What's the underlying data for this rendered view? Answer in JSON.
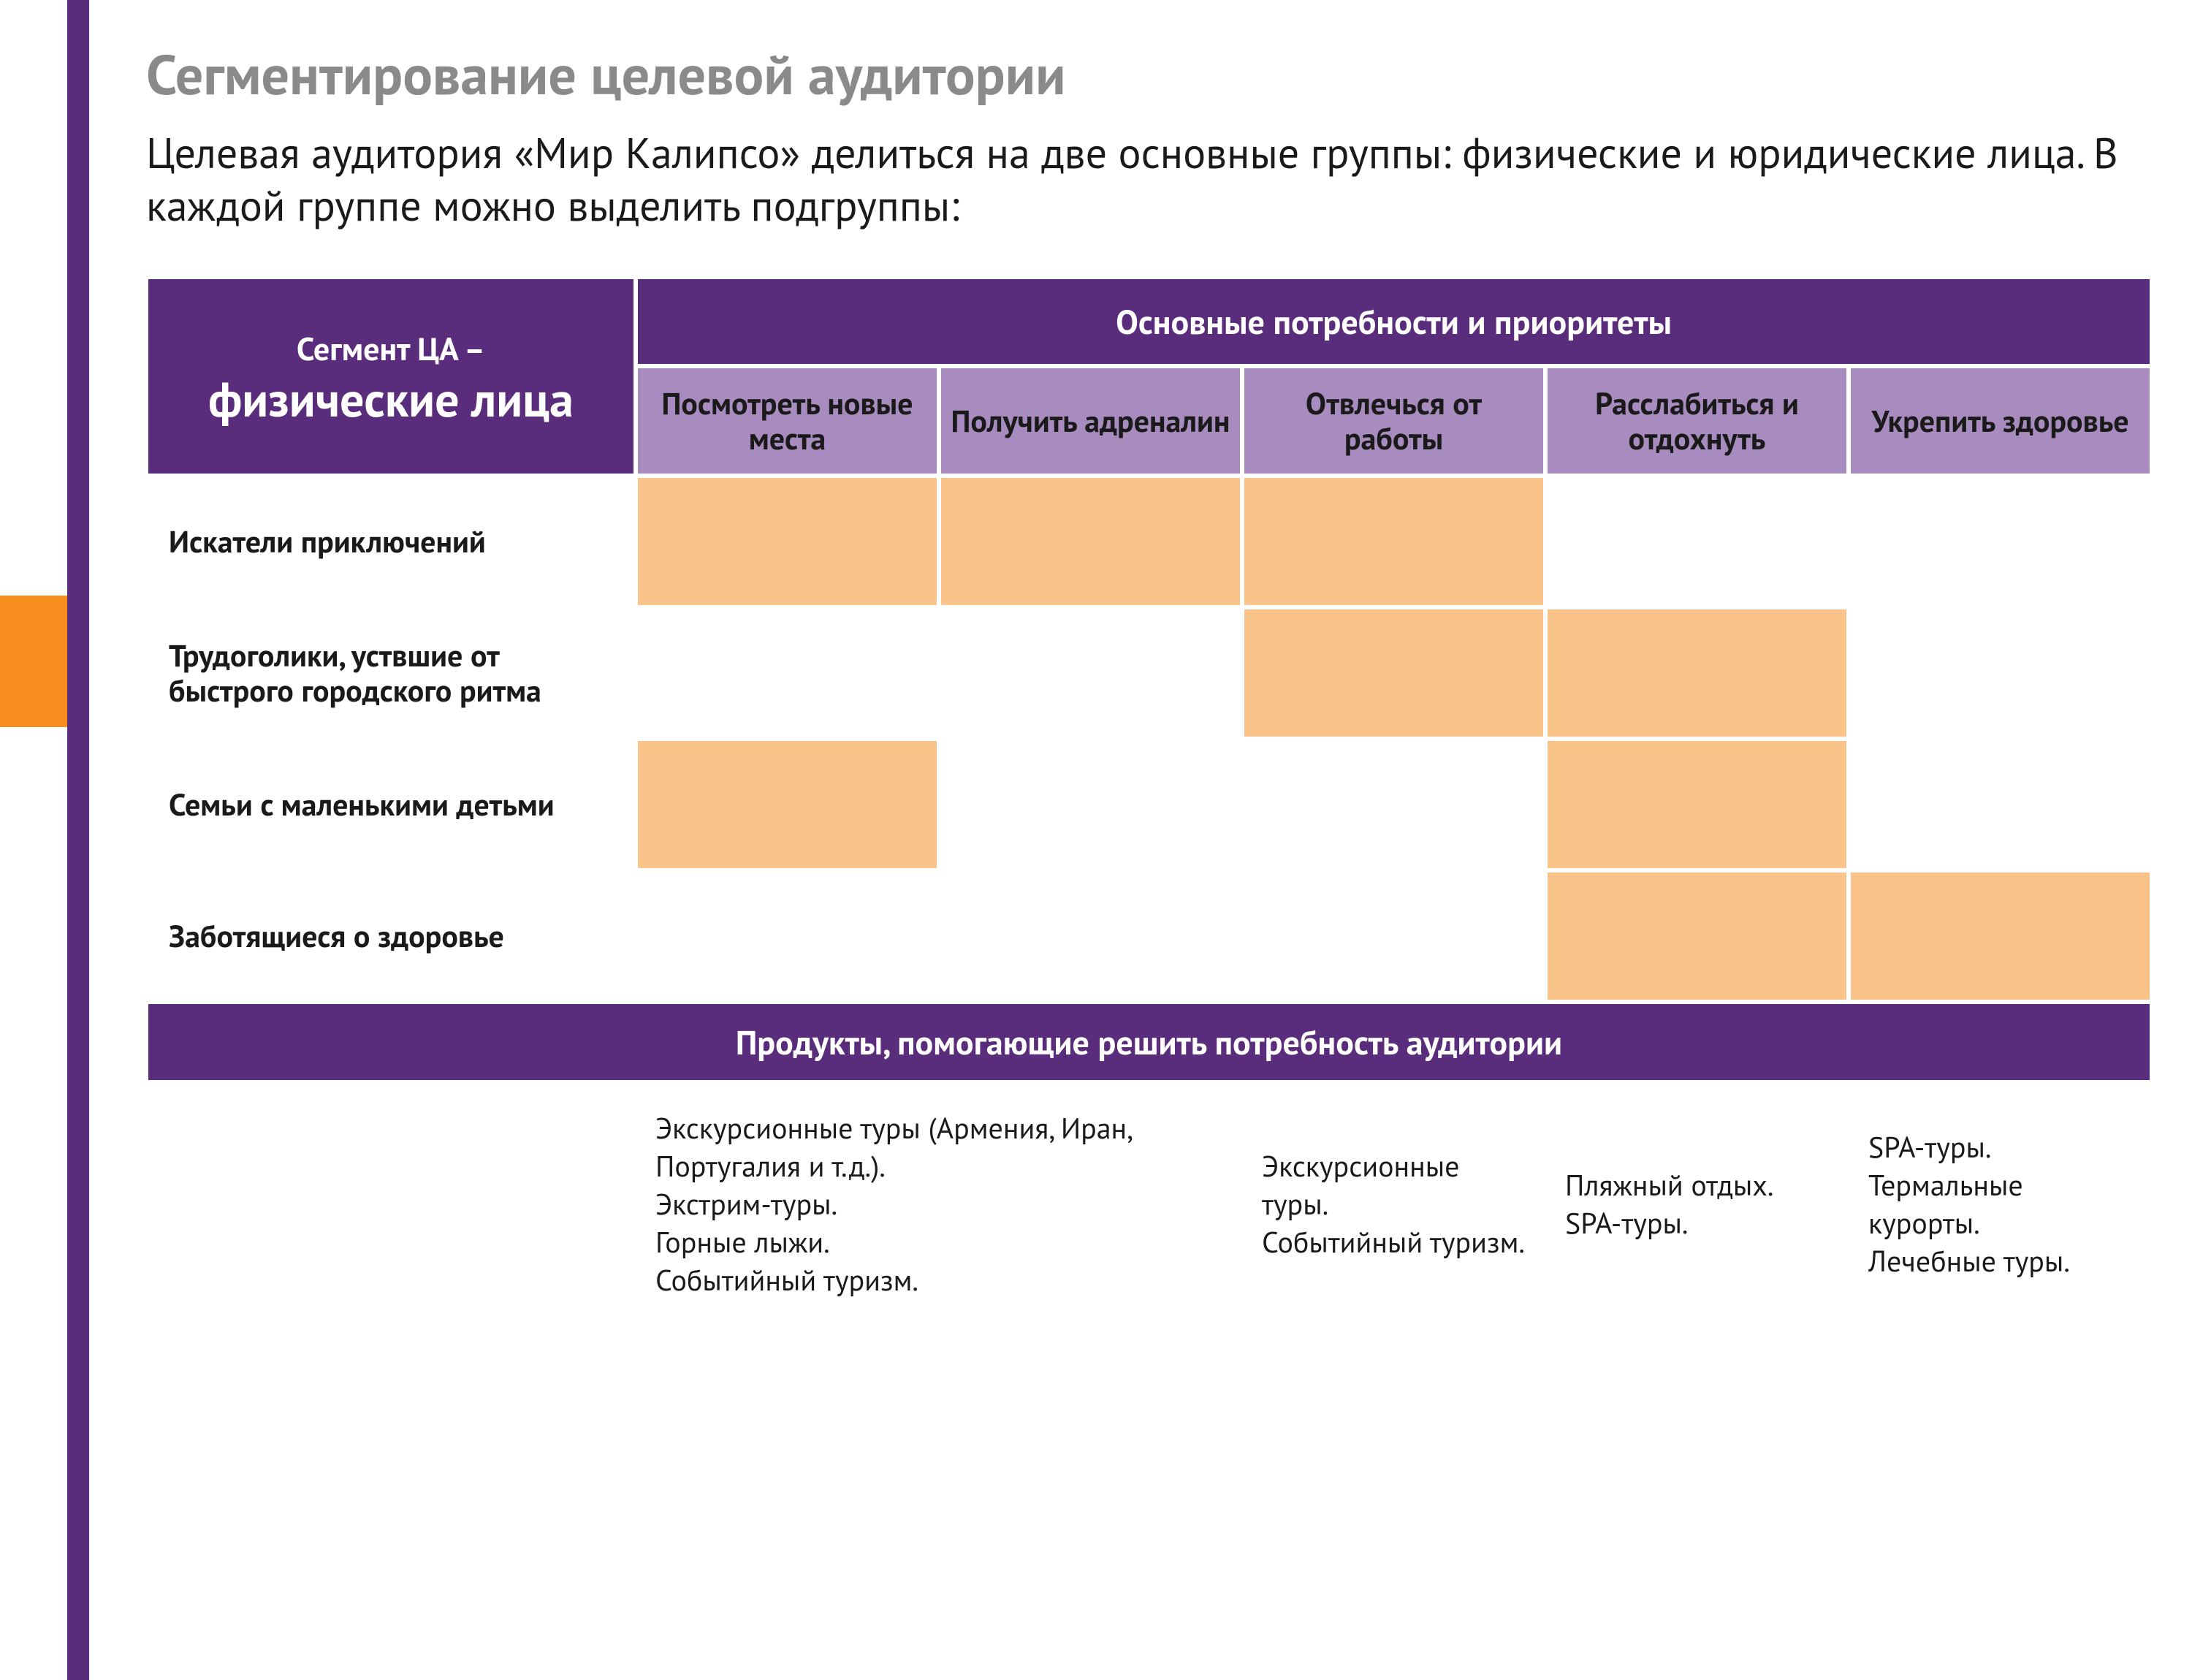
{
  "colors": {
    "purple_dark": "#5a2d7c",
    "purple_light": "#a98cbf",
    "orange_sidebar": "#f78e1e",
    "orange_cell": "#f9c38a",
    "title_grey": "#8a8a8a",
    "text": "#1a1a1a",
    "background": "#ffffff"
  },
  "title": "Сегментирование целевой аудитории",
  "subtitle": "Целевая аудитория «Мир Калипсо» делиться на две основные группы: физические и юридические лица. В каждой группе можно выделить подгруппы:",
  "table": {
    "segment_header_super": "Сегмент ЦА –",
    "segment_header_main": "физические лица",
    "needs_header": "Основные потребности и приоритеты",
    "need_columns": [
      "Посмотреть новые места",
      "Получить адреналин",
      "Отвлечься от работы",
      "Расслабиться и отдохнуть",
      "Укрепить здоровье"
    ],
    "rows": [
      {
        "label": "Искатели приключений",
        "cells": [
          1,
          1,
          1,
          0,
          0
        ]
      },
      {
        "label": "Трудоголики, уствшие от быстрого городского ритма",
        "cells": [
          0,
          0,
          1,
          1,
          0
        ]
      },
      {
        "label": "Семьи с маленькими детьми",
        "cells": [
          1,
          0,
          0,
          1,
          0
        ]
      },
      {
        "label": "Заботящиеся о здоровье",
        "cells": [
          0,
          0,
          0,
          1,
          1
        ]
      }
    ],
    "products_header": "Продукты, помогающие решить потребность аудитории",
    "products_row_label": "",
    "products": [
      "Экскурсионные туры (Армения, Иран, Португалия и т.д.).\nЭкстрим-туры.\nГорные лыжи.\nСобытийный туризм.",
      "",
      "Экскурсионные туры.\nСобытийный туризм.",
      "Пляжный отдых.\n SPA-туры.",
      "SPA-туры.\nТермальные курорты.\nЛечебные туры."
    ],
    "products_colspan_first": 2
  }
}
